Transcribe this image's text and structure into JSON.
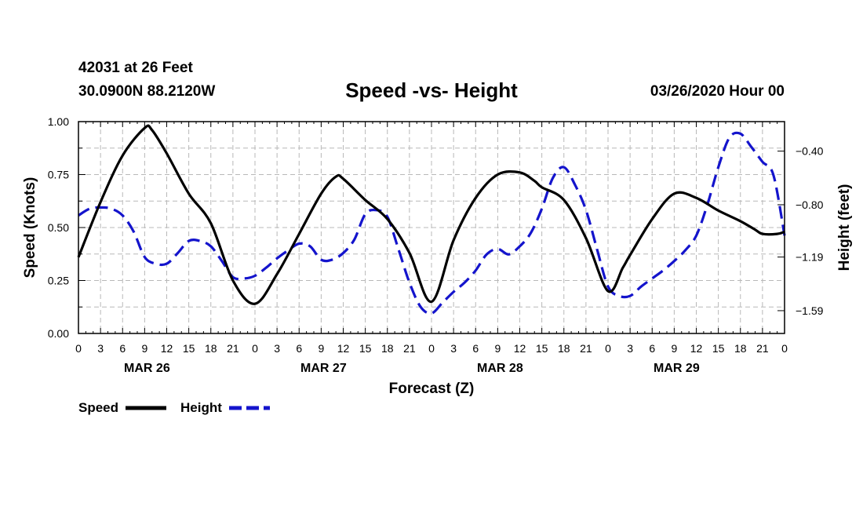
{
  "header": {
    "station": "42031 at 26 Feet",
    "location": "30.0900N 88.2120W",
    "title": "Speed -vs- Height",
    "run_time": "03/26/2020 Hour 00"
  },
  "chart_data": {
    "type": "line",
    "title": "Speed -vs- Height",
    "xlabel": "Forecast (Z)",
    "ylabel": "Speed (Knots)",
    "y2label": "Height (feet)",
    "x_range": [
      0,
      96
    ],
    "x_tick_step": 3,
    "x_tick_labels": [
      "0",
      "3",
      "6",
      "9",
      "12",
      "15",
      "18",
      "21",
      "0",
      "3",
      "6",
      "9",
      "12",
      "15",
      "18",
      "21",
      "0",
      "3",
      "6",
      "9",
      "12",
      "15",
      "18",
      "21",
      "0",
      "3",
      "6",
      "9",
      "12",
      "15",
      "18",
      "21",
      "0"
    ],
    "date_labels": [
      {
        "label": "MAR 26",
        "hour": 9
      },
      {
        "label": "MAR 27",
        "hour": 33
      },
      {
        "label": "MAR 28",
        "hour": 57
      },
      {
        "label": "MAR 29",
        "hour": 81
      }
    ],
    "y_left": {
      "range": [
        0,
        1
      ],
      "ticks": [
        0,
        0.25,
        0.5,
        0.75,
        1.0
      ],
      "tick_labels": [
        "0.00",
        "0.25",
        "0.50",
        "0.75",
        "1.00"
      ]
    },
    "y_right": {
      "range": [
        -1.76,
        -0.18
      ],
      "ticks": [
        -1.59,
        -1.19,
        -0.8,
        -0.4
      ],
      "tick_labels": [
        "-1.59",
        "-1.19",
        "-0.80",
        "-0.40"
      ]
    },
    "grid": true,
    "legend": [
      {
        "label": "Speed",
        "color": "#000000",
        "style": "solid"
      },
      {
        "label": "Height",
        "color": "#1414cc",
        "style": "dashed"
      }
    ],
    "series": [
      {
        "name": "Speed",
        "axis": "left",
        "color": "#000000",
        "x": [
          0,
          3,
          6,
          9,
          10,
          12,
          15,
          18,
          21,
          24,
          27,
          30,
          33,
          35,
          36,
          39,
          42,
          45,
          48,
          51,
          54,
          57,
          60,
          62,
          63,
          66,
          69,
          72,
          74,
          75,
          78,
          81,
          84,
          87,
          90,
          92,
          93,
          95,
          96
        ],
        "values": [
          0.36,
          0.62,
          0.84,
          0.97,
          0.96,
          0.85,
          0.66,
          0.52,
          0.25,
          0.14,
          0.28,
          0.47,
          0.66,
          0.74,
          0.73,
          0.63,
          0.54,
          0.38,
          0.15,
          0.44,
          0.64,
          0.75,
          0.76,
          0.72,
          0.69,
          0.63,
          0.45,
          0.2,
          0.31,
          0.37,
          0.54,
          0.66,
          0.64,
          0.58,
          0.53,
          0.49,
          0.47,
          0.47,
          0.48
        ]
      },
      {
        "name": "Height",
        "axis": "right",
        "color": "#1414cc",
        "x": [
          0,
          1.5,
          3,
          4.5,
          6,
          7.5,
          9,
          10.5,
          12,
          13.5,
          15,
          16.5,
          18,
          19.5,
          21,
          22.5,
          24,
          25.5,
          27,
          28.5,
          30,
          31.5,
          33,
          34.5,
          36,
          37.5,
          39,
          40.5,
          42,
          43.5,
          45,
          46.5,
          48,
          49.5,
          51,
          52.5,
          54,
          55.5,
          57,
          58.5,
          60,
          61.5,
          63,
          64.5,
          66,
          67.5,
          69,
          70.5,
          72,
          73.5,
          75,
          76.5,
          78,
          79.5,
          81,
          82.5,
          84,
          85.5,
          87,
          88.5,
          90,
          91.5,
          93,
          94.5,
          96
        ],
        "values": [
          -0.88,
          -0.83,
          -0.82,
          -0.83,
          -0.88,
          -1.0,
          -1.19,
          -1.24,
          -1.24,
          -1.16,
          -1.07,
          -1.07,
          -1.11,
          -1.22,
          -1.34,
          -1.35,
          -1.33,
          -1.27,
          -1.2,
          -1.14,
          -1.09,
          -1.11,
          -1.21,
          -1.21,
          -1.16,
          -1.06,
          -0.87,
          -0.84,
          -0.89,
          -1.13,
          -1.38,
          -1.56,
          -1.61,
          -1.53,
          -1.45,
          -1.38,
          -1.29,
          -1.17,
          -1.13,
          -1.17,
          -1.11,
          -1.01,
          -0.83,
          -0.6,
          -0.52,
          -0.65,
          -0.84,
          -1.13,
          -1.41,
          -1.48,
          -1.48,
          -1.41,
          -1.35,
          -1.29,
          -1.22,
          -1.14,
          -1.03,
          -0.8,
          -0.52,
          -0.3,
          -0.27,
          -0.37,
          -0.48,
          -0.58,
          -1.03
        ]
      }
    ]
  }
}
